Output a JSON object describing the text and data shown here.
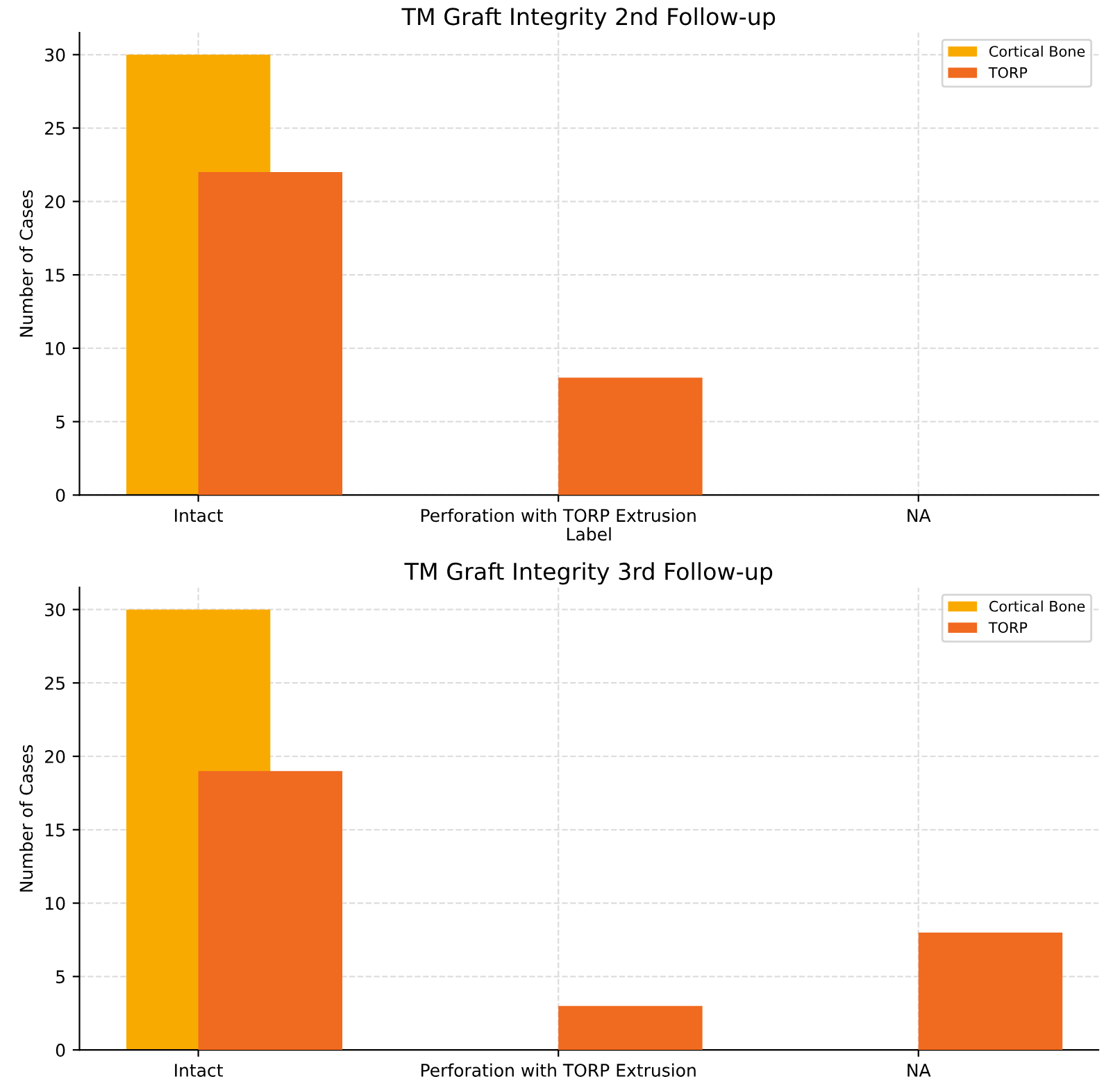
{
  "chart_data": [
    {
      "type": "bar",
      "title": "TM Graft Integrity 2nd Follow-up",
      "xlabel": "Label",
      "ylabel": "Number of Cases",
      "categories": [
        "Intact",
        "Perforation with TORP Extrusion",
        "NA"
      ],
      "series": [
        {
          "name": "Cortical Bone",
          "color": "#f9aa00",
          "values": [
            30,
            0,
            0
          ]
        },
        {
          "name": "TORP",
          "color": "#f06a20",
          "values": [
            22,
            8,
            0
          ]
        }
      ],
      "ylim": [
        0,
        31.5
      ],
      "yticks": [
        0,
        5,
        10,
        15,
        20,
        25,
        30
      ],
      "grid": true,
      "legend": "top right"
    },
    {
      "type": "bar",
      "title": "TM Graft Integrity 3rd Follow-up",
      "ylabel": "Number of Cases",
      "categories": [
        "Intact",
        "Perforation with TORP Extrusion",
        "NA"
      ],
      "series": [
        {
          "name": "Cortical Bone",
          "color": "#f9aa00",
          "values": [
            30,
            0,
            0
          ]
        },
        {
          "name": "TORP",
          "color": "#f06a20",
          "values": [
            19,
            3,
            8
          ]
        }
      ],
      "ylim": [
        0,
        31.5
      ],
      "yticks": [
        0,
        5,
        10,
        15,
        20,
        25,
        30
      ],
      "grid": true,
      "legend": "top right"
    }
  ]
}
